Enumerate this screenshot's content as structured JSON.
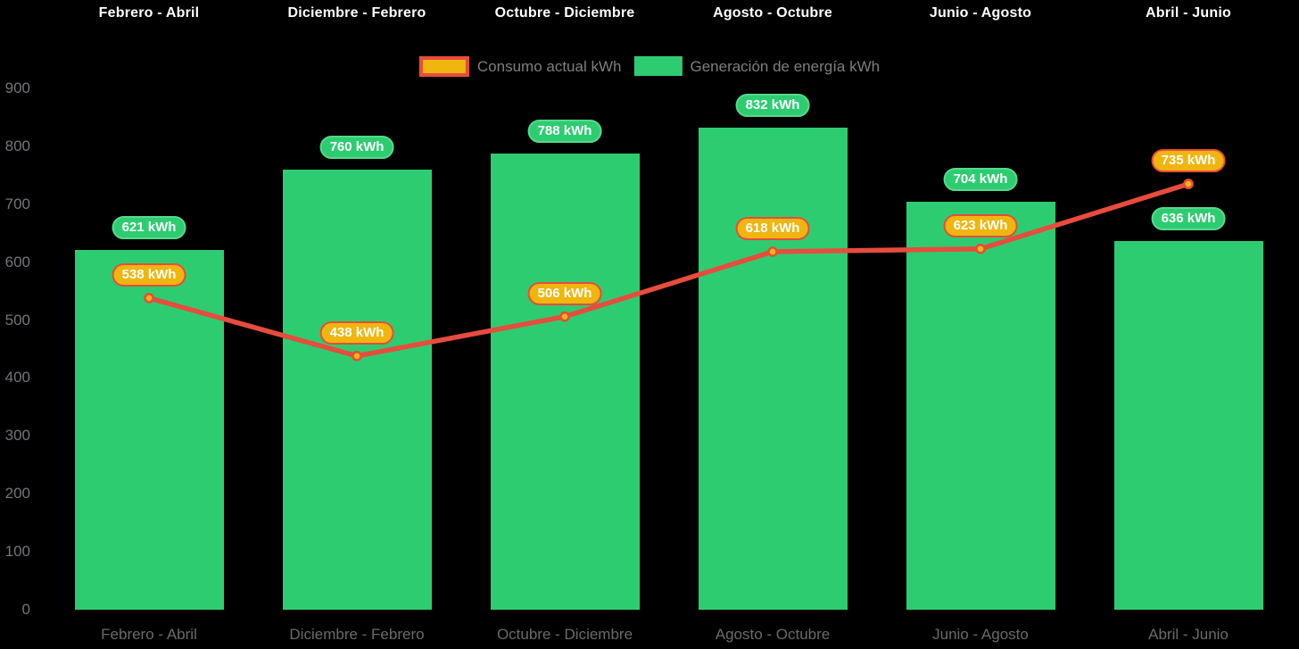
{
  "chart_data": {
    "type": "bar",
    "title": "",
    "unit": "kWh",
    "categories": [
      "Febrero - Abril",
      "Diciembre - Febrero",
      "Octubre - Diciembre",
      "Agosto - Octubre",
      "Junio - Agosto",
      "Abril - Junio"
    ],
    "series": [
      {
        "name": "Consumo actual kWh",
        "type": "line",
        "values": [
          538,
          438,
          506,
          618,
          623,
          735
        ]
      },
      {
        "name": "Generación de energía kWh",
        "type": "bar",
        "values": [
          621,
          760,
          788,
          832,
          704,
          636
        ]
      }
    ],
    "ylim": [
      0,
      900
    ],
    "yticks": [
      0,
      100,
      200,
      300,
      400,
      500,
      600,
      700,
      800,
      900
    ],
    "grid": false,
    "legend_position": "top-center",
    "x_axis_labels": {
      "top": true,
      "bottom": true
    },
    "data_labels": true
  },
  "colors": {
    "background": "#000000",
    "bar_green": "#2ecc71",
    "pill_green_border": "#55d98b",
    "line_red": "#e74c3c",
    "gold": "#f0b50f",
    "pill_text": "#ffffff",
    "legend_text": "#7e7e7e",
    "y_axis_text": "#75757a",
    "x_top_text": "#ffffff",
    "x_bottom_text": "#6a6a6a"
  }
}
